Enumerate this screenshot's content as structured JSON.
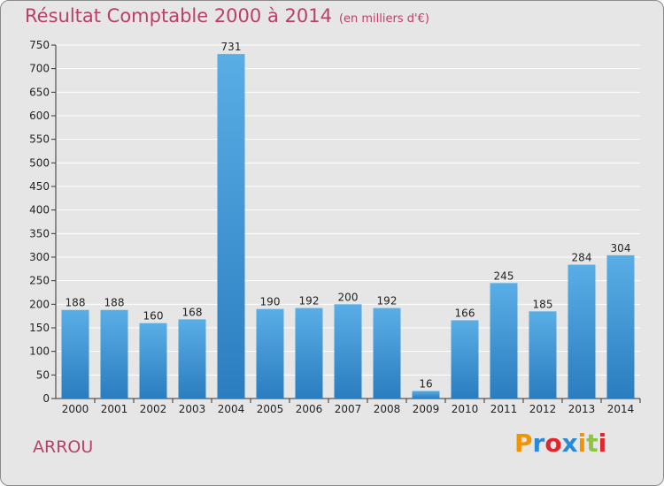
{
  "header": {
    "title": "Résultat Comptable 2000 à 2014",
    "subtitle": "(en milliers d'€)"
  },
  "footer": {
    "place": "ARROU",
    "logo_letters": [
      "P",
      "r",
      "o",
      "x",
      "i",
      "t",
      "i"
    ],
    "logo_colors": [
      "#f29400",
      "#2a8ad8",
      "#e0262e",
      "#2a8ad8",
      "#f29400",
      "#8cc63f",
      "#e0262e"
    ]
  },
  "colors": {
    "title": "#b8406a",
    "bar_top": "#5aaee6",
    "bar_bottom": "#2a7dbf",
    "grid": "#ffffff",
    "background": "#e6e6e6"
  },
  "chart_data": {
    "type": "bar",
    "title": "Résultat Comptable 2000 à 2014",
    "subtitle": "(en milliers d'€)",
    "categories": [
      "2000",
      "2001",
      "2002",
      "2003",
      "2004",
      "2005",
      "2006",
      "2007",
      "2008",
      "2009",
      "2010",
      "2011",
      "2012",
      "2013",
      "2014"
    ],
    "values": [
      188,
      188,
      160,
      168,
      731,
      190,
      192,
      200,
      192,
      16,
      166,
      245,
      185,
      284,
      304
    ],
    "xlabel": "",
    "ylabel": "",
    "ylim": [
      0,
      750
    ],
    "yticks": [
      0,
      50,
      100,
      150,
      200,
      250,
      300,
      350,
      400,
      450,
      500,
      550,
      600,
      650,
      700,
      750
    ],
    "grid": true,
    "legend": "none"
  }
}
